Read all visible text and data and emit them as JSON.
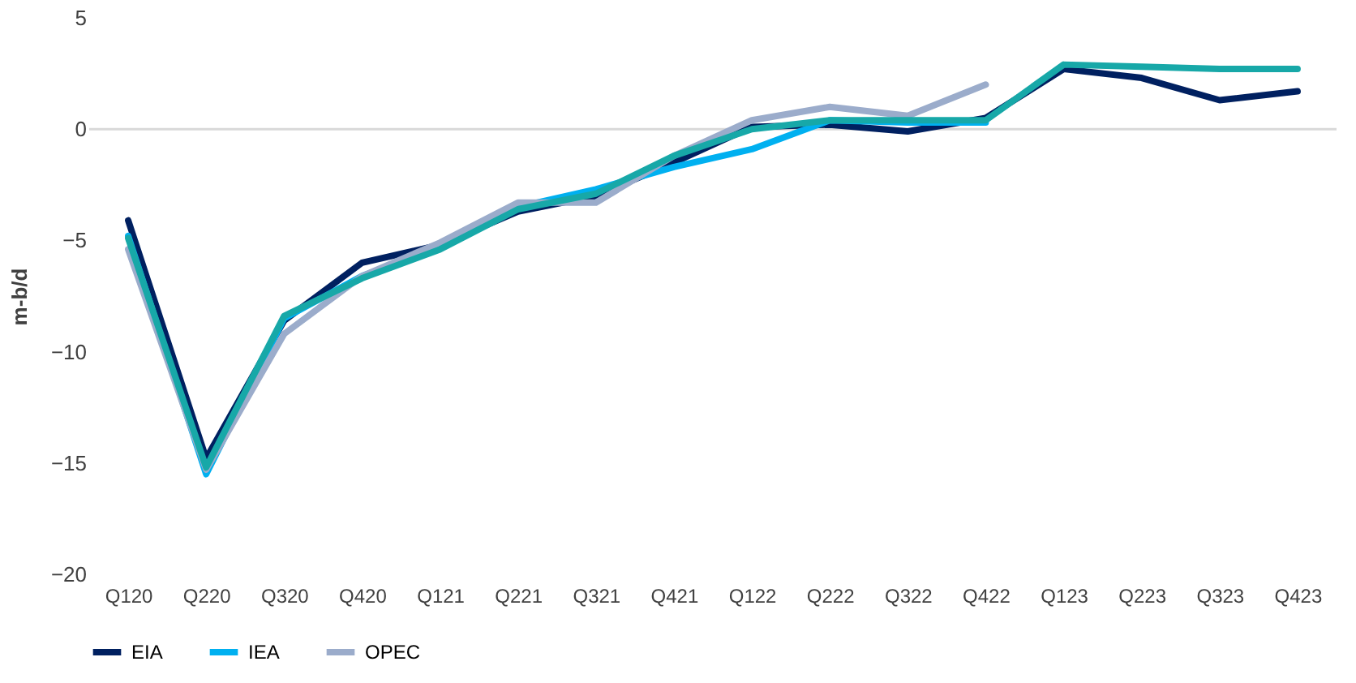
{
  "chart_data": {
    "type": "line",
    "ylabel": "m-b/d",
    "categories": [
      "Q120",
      "Q220",
      "Q320",
      "Q420",
      "Q121",
      "Q221",
      "Q321",
      "Q421",
      "Q122",
      "Q222",
      "Q322",
      "Q422",
      "Q123",
      "Q223",
      "Q323",
      "Q423"
    ],
    "series": [
      {
        "name": "EIA",
        "color": "#002060",
        "values": [
          -4.1,
          -14.8,
          -8.6,
          -6.0,
          -5.2,
          -3.7,
          -3.0,
          -1.5,
          0.1,
          0.2,
          -0.1,
          0.5,
          2.7,
          2.3,
          1.3,
          1.7
        ]
      },
      {
        "name": "IEA",
        "color": "#00b0f0",
        "values": [
          -4.8,
          -15.5,
          -8.5,
          -6.6,
          -5.3,
          -3.5,
          -2.7,
          -1.7,
          -0.9,
          0.4,
          0.3,
          0.3,
          null,
          null,
          null,
          null
        ]
      },
      {
        "name": "OPEC",
        "color": "#9baccb",
        "values": [
          -5.4,
          -15.3,
          -9.2,
          -6.6,
          -5.1,
          -3.3,
          -3.3,
          -1.2,
          0.4,
          1.0,
          0.6,
          2.0,
          null,
          null,
          null,
          null
        ]
      },
      {
        "color": "#17a8a8",
        "values": [
          -4.9,
          -15.2,
          -8.4,
          -6.7,
          -5.4,
          -3.6,
          -2.9,
          -1.2,
          0.0,
          0.4,
          0.4,
          0.4,
          2.9,
          2.8,
          2.7,
          2.7
        ]
      }
    ],
    "ylim": [
      -20,
      5
    ],
    "yticks": [
      -20,
      -15,
      -10,
      -5,
      0,
      5
    ],
    "ref_lines": [
      {
        "axis": "y",
        "value": 0,
        "color": "#d9d9d9"
      }
    ],
    "grid": false,
    "legend": "bottom",
    "marker": "none",
    "line_style": "solid"
  }
}
